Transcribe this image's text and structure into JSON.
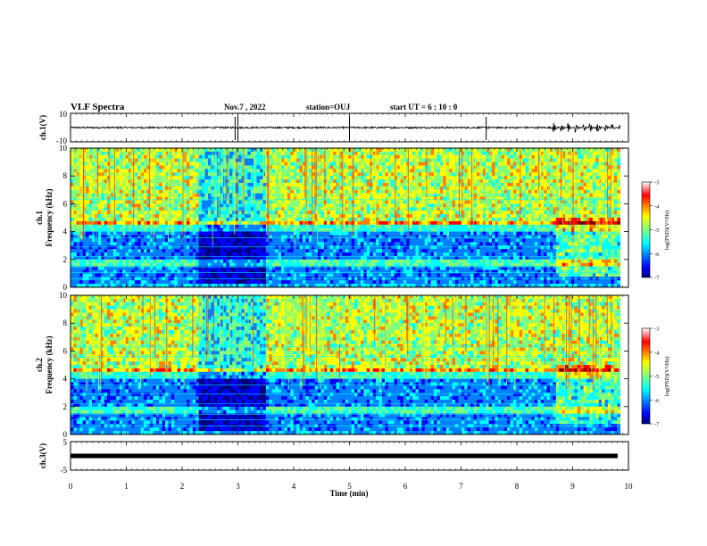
{
  "header": {
    "title": "VLF Spectra",
    "date": "Nov.7 , 2022",
    "station": "station=OUJ",
    "start_ut": "start UT =  6 : 10 : 0"
  },
  "chart_data": [
    {
      "type": "line",
      "name": "waveform-ch1",
      "ylabel": "ch.1(V)",
      "ylim": [
        -10,
        10
      ],
      "yticks": [
        "10",
        "-10"
      ],
      "xlim": [
        0,
        10
      ],
      "description_points": {
        "burst_start_min": 8.65,
        "burst_end_min": 9.85,
        "spike_minutes": [
          2.95,
          3.0,
          5.0,
          7.45
        ]
      }
    },
    {
      "type": "heatmap",
      "name": "spectrogram-ch1",
      "ylabel": "ch.1\nFrequency (kHz)",
      "ylabel_lines": [
        "ch.1",
        "Frequency  (kHz)"
      ],
      "ylim": [
        0,
        10
      ],
      "yticks": [
        "0",
        "2",
        "4",
        "6",
        "8",
        "10"
      ],
      "xlim": [
        0,
        10
      ],
      "colorbar": {
        "label": "log(PSD)(V²/Hz)",
        "ticks": [
          "-3",
          "-4",
          "-5",
          "-6",
          "-7"
        ],
        "range": [
          -7,
          -3
        ]
      }
    },
    {
      "type": "heatmap",
      "name": "spectrogram-ch2",
      "ylabel_lines": [
        "ch.2",
        "Frequency  (kHz)"
      ],
      "ylim": [
        0,
        10
      ],
      "yticks": [
        "0",
        "2",
        "4",
        "6",
        "8",
        "10"
      ],
      "xlim": [
        0,
        10
      ],
      "colorbar": {
        "label": "log(PSD)(V²/Hz)",
        "ticks": [
          "-3",
          "-4",
          "-5",
          "-6",
          "-7"
        ],
        "range": [
          -7,
          -3
        ]
      }
    },
    {
      "type": "line",
      "name": "waveform-ch3",
      "ylabel": "ch.3(V)",
      "ylim": [
        -5,
        5
      ],
      "yticks": [
        "5",
        "-5"
      ],
      "x": [
        0,
        9.85
      ],
      "values": [
        0,
        0
      ],
      "xlim": [
        0,
        10
      ]
    }
  ],
  "xaxis": {
    "label": "Time  (min)",
    "ticks": [
      "0",
      "1",
      "2",
      "3",
      "4",
      "5",
      "6",
      "7",
      "8",
      "9",
      "10"
    ]
  },
  "colors": {
    "jet": [
      "#00007f",
      "#0000ff",
      "#007fff",
      "#00ffff",
      "#7fff7f",
      "#ffff00",
      "#ff7f00",
      "#ff0000",
      "#7f0000"
    ]
  }
}
